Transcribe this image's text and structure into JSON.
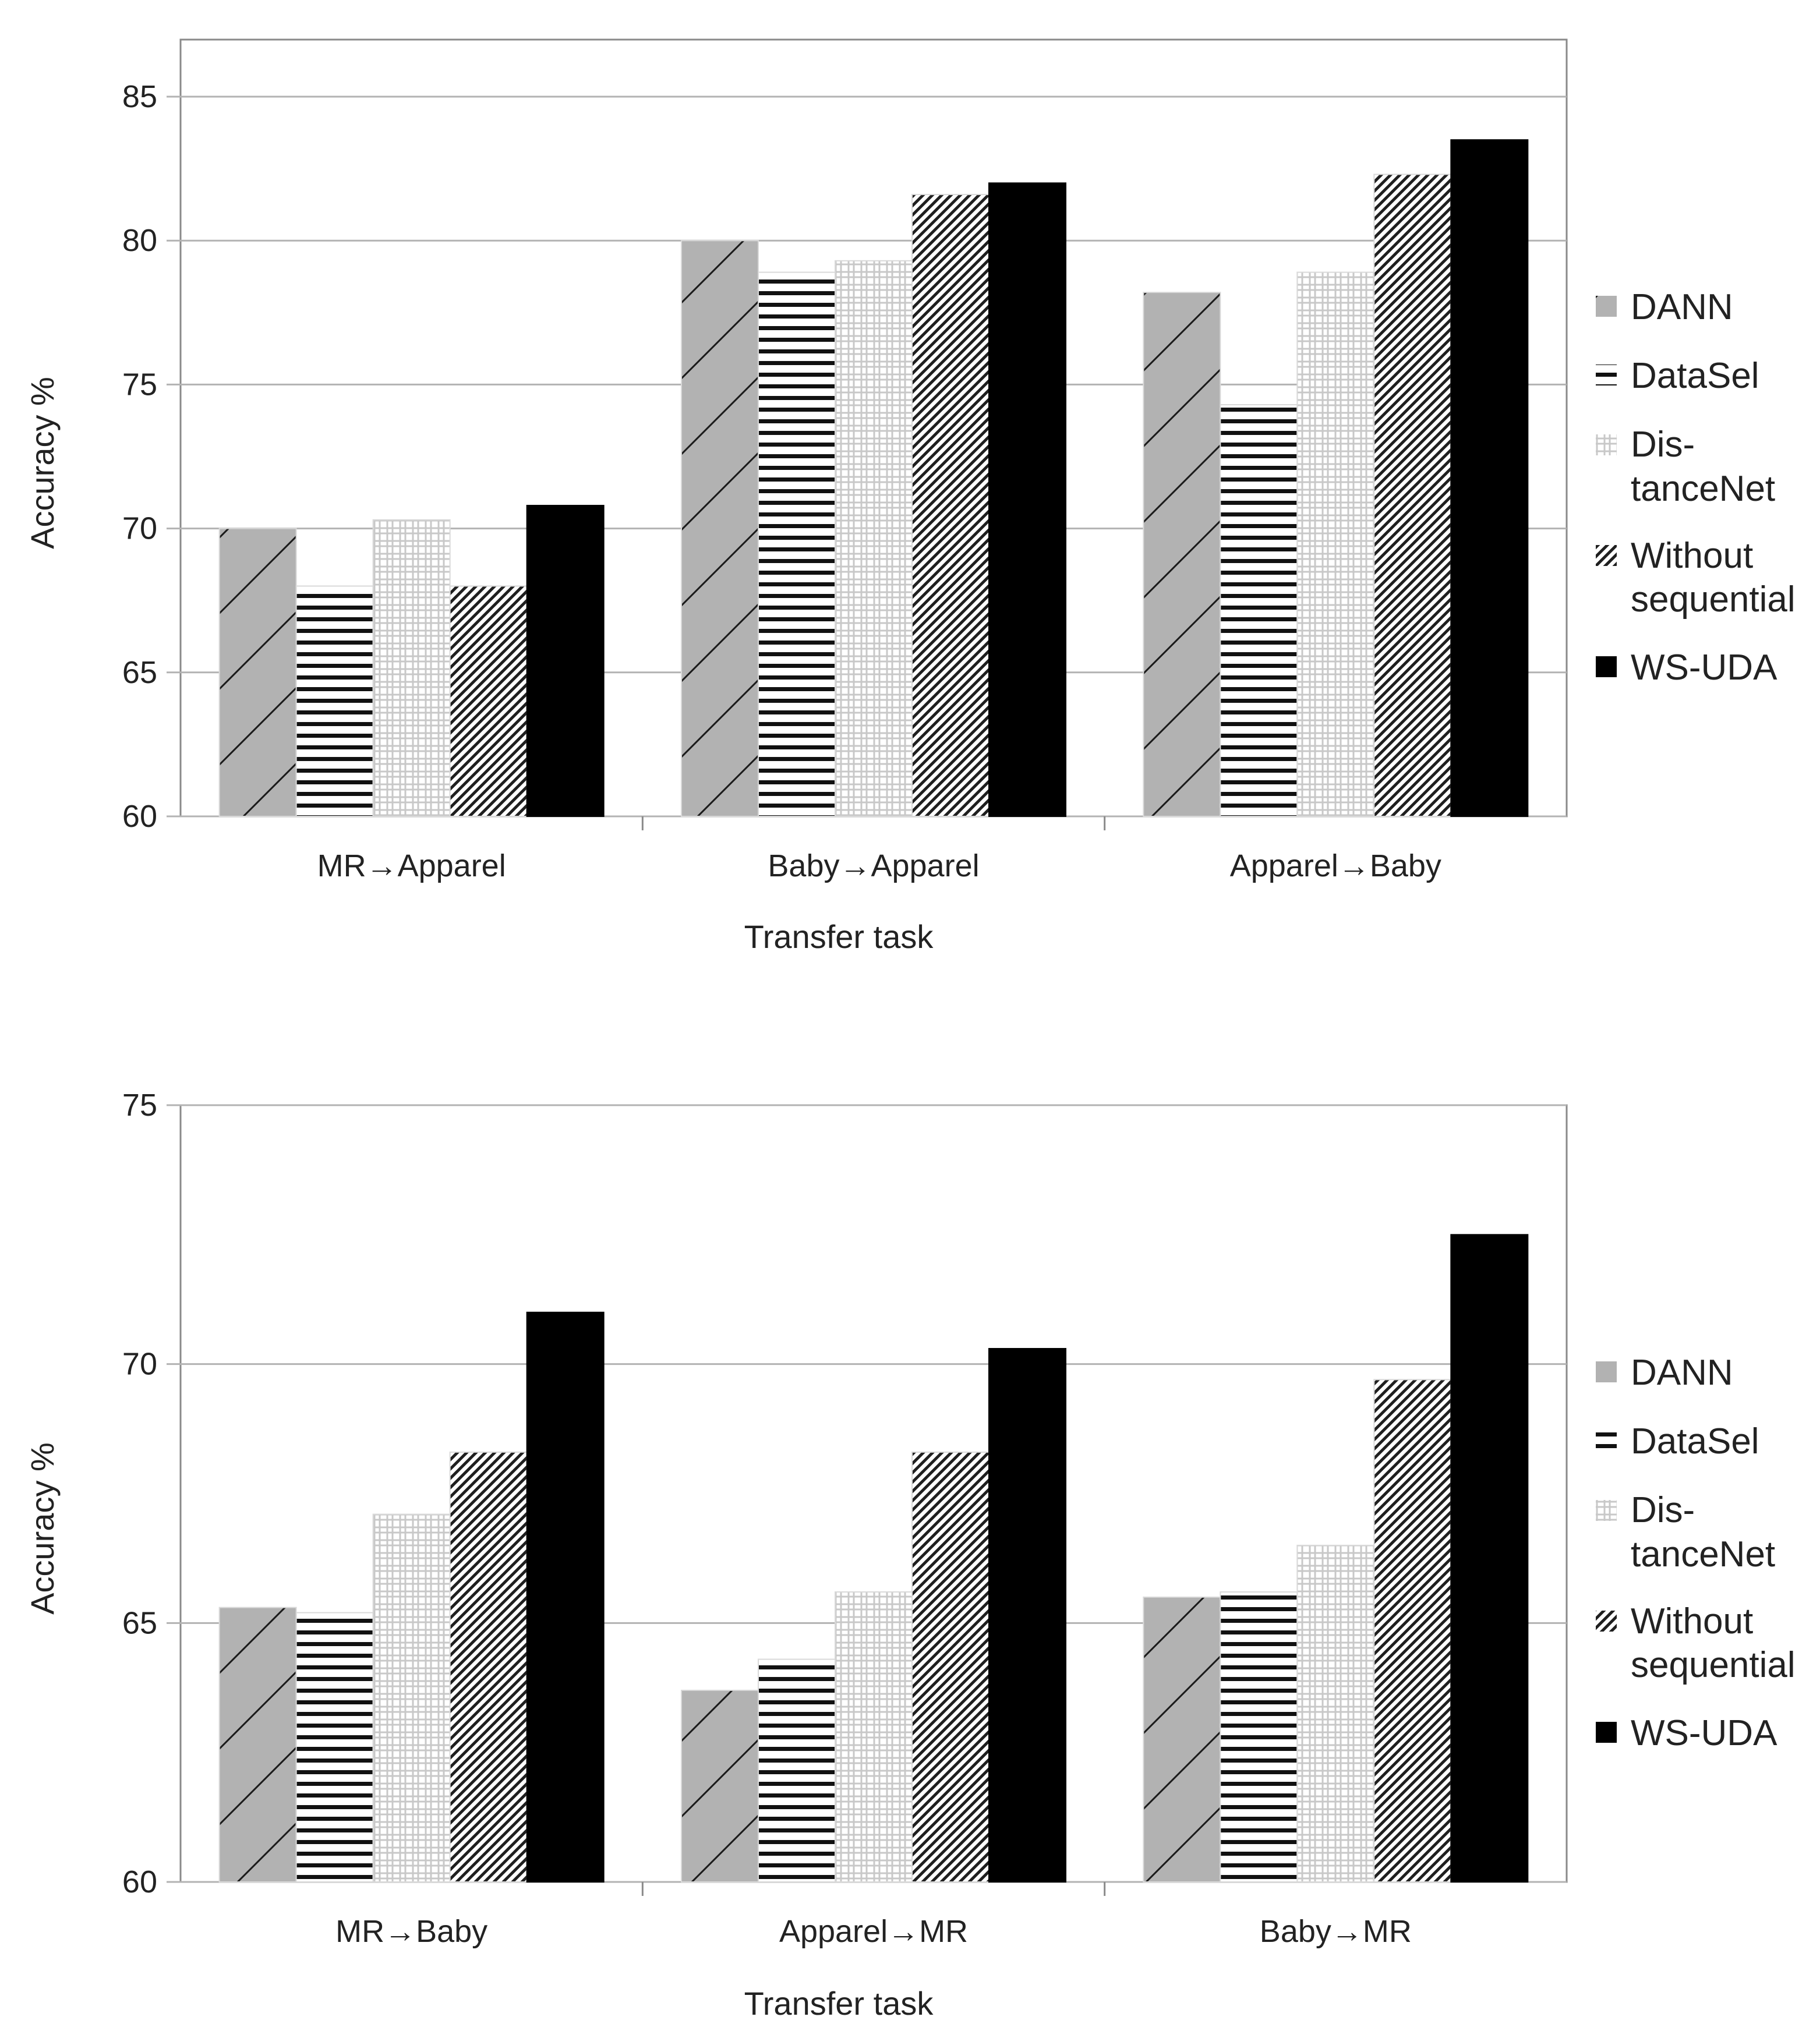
{
  "colors": {
    "grid": "#b3b3b3",
    "axis": "#8a8a8a",
    "gray": "#b2b2b2",
    "black": "#000000"
  },
  "legend": {
    "dann": "DANN",
    "datasel": "DataSel",
    "distancenet_1": "Dis-",
    "distancenet_2": "tanceNet",
    "without_1": "Without",
    "without_2": "sequential",
    "wsuda": "WS-UDA"
  },
  "chart_data": [
    {
      "type": "bar",
      "title": "",
      "xlabel": "Transfer task",
      "ylabel": "Accuracy %",
      "ylim": [
        60,
        85
      ],
      "yticks": [
        "60",
        "65",
        "70",
        "75",
        "80",
        "85"
      ],
      "categories": [
        "MR→Apparel",
        "Baby→Apparel",
        "Apparel→Baby"
      ],
      "series": [
        {
          "name": "DANN",
          "values": [
            70.0,
            80.0,
            78.2
          ]
        },
        {
          "name": "DataSel",
          "values": [
            68.0,
            78.9,
            74.3
          ]
        },
        {
          "name": "DistanceNet",
          "values": [
            70.3,
            79.3,
            78.9
          ]
        },
        {
          "name": "Without sequential",
          "values": [
            68.0,
            81.6,
            82.3
          ]
        },
        {
          "name": "WS-UDA",
          "values": [
            70.8,
            82.0,
            83.5
          ]
        }
      ],
      "legend_position": "right"
    },
    {
      "type": "bar",
      "title": "",
      "xlabel": "Transfer task",
      "ylabel": "Accuracy %",
      "ylim": [
        60,
        75
      ],
      "yticks": [
        "60",
        "65",
        "70",
        "75"
      ],
      "categories": [
        "MR→Baby",
        "Apparel→MR",
        "Baby→MR"
      ],
      "series": [
        {
          "name": "DANN",
          "values": [
            65.3,
            63.7,
            65.5
          ]
        },
        {
          "name": "DataSel",
          "values": [
            65.2,
            64.3,
            65.6
          ]
        },
        {
          "name": "DistanceNet",
          "values": [
            67.1,
            65.6,
            66.5
          ]
        },
        {
          "name": "Without sequential",
          "values": [
            68.3,
            68.3,
            69.7
          ]
        },
        {
          "name": "WS-UDA",
          "values": [
            71.0,
            70.3,
            72.5
          ]
        }
      ],
      "legend_position": "right"
    }
  ]
}
